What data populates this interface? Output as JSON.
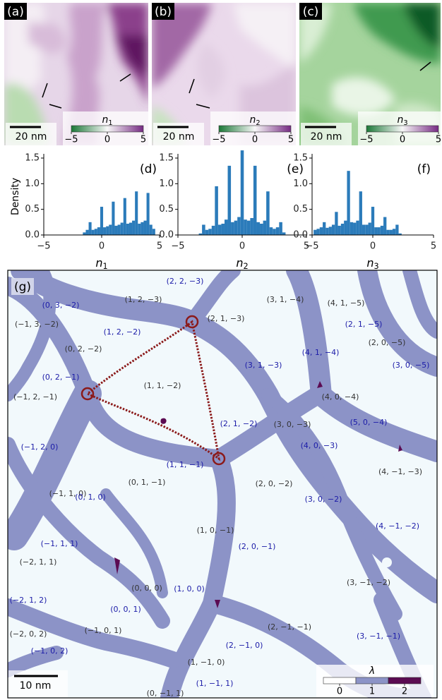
{
  "panels": [
    {
      "letter": "(a)",
      "scale_bar": "20 nm",
      "colorbar": {
        "symbol": "n",
        "sub": "1",
        "colors": [
          "#1b7837",
          "#f7f7f7",
          "#762a83"
        ],
        "ticks": [
          {
            "value": -5,
            "label": "−5"
          },
          0,
          5
        ]
      }
    },
    {
      "letter": "(b)",
      "scale_bar": "20 nm",
      "colorbar": {
        "symbol": "n",
        "sub": "2",
        "colors": [
          "#1b7837",
          "#f7f7f7",
          "#762a83"
        ],
        "ticks": [
          {
            "value": -5,
            "label": "−5"
          },
          0,
          5
        ]
      }
    },
    {
      "letter": "(c)",
      "scale_bar": "20 nm",
      "colorbar": {
        "symbol": "n",
        "sub": "3",
        "colors": [
          "#1b7837",
          "#f7f7f7",
          "#762a83"
        ],
        "ticks": [
          {
            "value": -5,
            "label": "−5"
          },
          0,
          5
        ]
      }
    }
  ],
  "chart_data": [
    {
      "type": "histogram",
      "letter": "(d)",
      "ylabel": "Density",
      "xlabel": {
        "symbol": "n",
        "sub": "1"
      },
      "color": "#2b7bba",
      "bins": [
        -4.875,
        -4.625,
        -4.375,
        -4.125,
        -3.875,
        -3.625,
        -3.375,
        -3.125,
        -2.875,
        -2.625,
        -2.375,
        -2.125,
        -1.875,
        -1.625,
        -1.375,
        -1.125,
        -0.875,
        -0.625,
        -0.375,
        -0.125,
        0.125,
        0.375,
        0.625,
        0.875,
        1.125,
        1.375,
        1.625,
        1.875,
        2.125,
        2.375,
        2.625,
        2.875,
        3.125,
        3.375,
        3.625,
        3.875,
        4.125,
        4.375,
        4.625,
        4.875
      ],
      "counts": [
        0,
        0,
        0,
        0,
        0,
        0,
        0,
        0,
        0,
        0,
        0,
        0,
        0,
        0.05,
        0.1,
        0.25,
        0.1,
        0.12,
        0.15,
        0.55,
        0.15,
        0.17,
        0.2,
        0.65,
        0.18,
        0.2,
        0.24,
        0.72,
        0.22,
        0.24,
        0.28,
        0.85,
        0.22,
        0.25,
        0.28,
        0.82,
        0.2,
        0.12,
        0
      ],
      "xlim": [
        -5,
        5
      ],
      "ylim": [
        0,
        1.5
      ],
      "xticks": [
        {
          "value": -5,
          "label": "−5"
        },
        0,
        5
      ],
      "yticks": [
        {
          "value": 0,
          "label": "0.0"
        },
        {
          "value": 0.5,
          "label": "0.5"
        },
        {
          "value": 1,
          "label": "1.0"
        },
        {
          "value": 1.5,
          "label": "1.5"
        }
      ]
    },
    {
      "type": "histogram",
      "letter": "(e)",
      "xlabel": {
        "symbol": "n",
        "sub": "2"
      },
      "color": "#2b7bba",
      "bins": [
        -4.875,
        -4.625,
        -4.375,
        -4.125,
        -3.875,
        -3.625,
        -3.375,
        -3.125,
        -2.875,
        -2.625,
        -2.375,
        -2.125,
        -1.875,
        -1.625,
        -1.375,
        -1.125,
        -0.875,
        -0.625,
        -0.375,
        -0.125,
        0.125,
        0.375,
        0.625,
        0.875,
        1.125,
        1.375,
        1.625,
        1.875,
        2.125,
        2.375,
        2.625,
        2.875,
        3.125,
        3.375,
        3.625,
        3.875,
        4.125,
        4.375,
        4.625,
        4.875
      ],
      "counts": [
        0,
        0,
        0,
        0,
        0,
        0,
        0.03,
        0.2,
        0.1,
        0.12,
        0.18,
        0.95,
        0.2,
        0.22,
        0.3,
        1.35,
        0.25,
        0.28,
        0.35,
        1.65,
        0.3,
        0.28,
        0.33,
        1.35,
        0.25,
        0.22,
        0.28,
        0.85,
        0.15,
        0.12,
        0.15,
        0.25,
        0.05,
        0,
        0,
        0,
        0,
        0,
        0
      ],
      "xlim": [
        -5,
        5
      ],
      "ylim": [
        0,
        1.5
      ],
      "xticks": [
        {
          "value": -5,
          "label": "−5"
        },
        0,
        5
      ],
      "yticks": [
        {
          "value": 0,
          "label": "0.0"
        },
        {
          "value": 0.5,
          "label": "0.5"
        },
        {
          "value": 1,
          "label": "1.0"
        },
        {
          "value": 1.5,
          "label": "1.5"
        }
      ]
    },
    {
      "type": "histogram",
      "letter": "(f)",
      "xlabel": {
        "symbol": "n",
        "sub": "3"
      },
      "color": "#2b7bba",
      "bins": [
        -4.875,
        -4.625,
        -4.375,
        -4.125,
        -3.875,
        -3.625,
        -3.375,
        -3.125,
        -2.875,
        -2.625,
        -2.375,
        -2.125,
        -1.875,
        -1.625,
        -1.375,
        -1.125,
        -0.875,
        -0.625,
        -0.375,
        -0.125,
        0.125,
        0.375,
        0.625,
        0.875,
        1.125,
        1.375,
        1.625,
        1.875,
        2.125,
        2.375,
        2.625,
        2.875,
        3.125,
        3.375,
        3.625,
        3.875,
        4.125,
        4.375,
        4.625,
        4.875
      ],
      "counts": [
        0.1,
        0.12,
        0.15,
        0.25,
        0.14,
        0.16,
        0.2,
        0.45,
        0.18,
        0.22,
        0.28,
        1.25,
        0.25,
        0.24,
        0.28,
        0.85,
        0.2,
        0.2,
        0.24,
        0.55,
        0.15,
        0.15,
        0.18,
        0.35,
        0.1,
        0.1,
        0.12,
        0.2,
        0.03,
        0,
        0,
        0,
        0,
        0,
        0,
        0,
        0,
        0,
        0
      ],
      "xlim": [
        -5,
        5
      ],
      "ylim": [
        0,
        1.5
      ],
      "xticks": [
        {
          "value": -5,
          "label": "−5"
        },
        0,
        5
      ],
      "yticks": [
        {
          "value": 0,
          "label": "0.0"
        },
        {
          "value": 0.5,
          "label": "0.5"
        },
        {
          "value": 1,
          "label": "1.0"
        },
        {
          "value": 1.5,
          "label": "1.5"
        }
      ]
    }
  ],
  "map": {
    "letter": "(g)",
    "scale_bar": "10 nm",
    "colorbar": {
      "symbol": "λ",
      "ticks": [
        0,
        1,
        2
      ],
      "colors": [
        "#ffffff",
        "#8c93c7",
        "#5b0b52"
      ]
    },
    "labels": [
      {
        "text": "(2, 2, −3)",
        "color": "#1c1ca8"
      },
      {
        "text": "(0, 3, −2)",
        "color": "#1c1ca8"
      },
      {
        "text": "(1, 2, −3)",
        "color": "#333333"
      },
      {
        "text": "(3, 1, −4)",
        "color": "#333333"
      },
      {
        "text": "(4, 1, −5)",
        "color": "#333333"
      },
      {
        "text": "(−1, 3, −2)",
        "color": "#333333"
      },
      {
        "text": "(2, 1, −3)",
        "color": "#333333"
      },
      {
        "text": "(1, 2, −2)",
        "color": "#1c1ca8"
      },
      {
        "text": "(2, 1, −5)",
        "color": "#1c1ca8"
      },
      {
        "text": "(0, 2, −2)",
        "color": "#333333"
      },
      {
        "text": "(2, 0, −5)",
        "color": "#333333"
      },
      {
        "text": "(4, 1, −4)",
        "color": "#1c1ca8"
      },
      {
        "text": "(0, 2, −1)",
        "color": "#1c1ca8"
      },
      {
        "text": "(3, 1, −3)",
        "color": "#1c1ca8"
      },
      {
        "text": "(3, 0, −5)",
        "color": "#1c1ca8"
      },
      {
        "text": "(1, 1, −2)",
        "color": "#333333"
      },
      {
        "text": "(−1, 2, −1)",
        "color": "#333333"
      },
      {
        "text": "(4, 0, −4)",
        "color": "#333333"
      },
      {
        "text": "(2, 1, −2)",
        "color": "#1c1ca8"
      },
      {
        "text": "(5, 0, −4)",
        "color": "#1c1ca8"
      },
      {
        "text": "(−1, 2, 0)",
        "color": "#1c1ca8"
      },
      {
        "text": "(3, 0, −3)",
        "color": "#333333"
      },
      {
        "text": "(4, 0, −3)",
        "color": "#1c1ca8"
      },
      {
        "text": "(1, 1, −1)",
        "color": "#1c1ca8"
      },
      {
        "text": "(4, −1, −3)",
        "color": "#333333"
      },
      {
        "text": "(0, 1, −1)",
        "color": "#333333"
      },
      {
        "text": "(−1, 1, 0)",
        "color": "#333333"
      },
      {
        "text": "(2, 0, −2)",
        "color": "#333333"
      },
      {
        "text": "(0, 1, 0)",
        "color": "#1c1ca8"
      },
      {
        "text": "(3, 0, −2)",
        "color": "#1c1ca8"
      },
      {
        "text": "(1, 0, −1)",
        "color": "#333333"
      },
      {
        "text": "(4, −1, −2)",
        "color": "#1c1ca8"
      },
      {
        "text": "(−1, 1, 1)",
        "color": "#1c1ca8"
      },
      {
        "text": "(2, 0, −1)",
        "color": "#1c1ca8"
      },
      {
        "text": "(−2, 1, 1)",
        "color": "#333333"
      },
      {
        "text": "(3, −1, −2)",
        "color": "#333333"
      },
      {
        "text": "(0, 0, 0)",
        "color": "#333333"
      },
      {
        "text": "(1, 0, 0)",
        "color": "#1c1ca8"
      },
      {
        "text": "(−2, 1, 2)",
        "color": "#1c1ca8"
      },
      {
        "text": "(0, 0, 1)",
        "color": "#1c1ca8"
      },
      {
        "text": "(2, −1, −1)",
        "color": "#333333"
      },
      {
        "text": "(−1, 0, 1)",
        "color": "#333333"
      },
      {
        "text": "(−2, 0, 2)",
        "color": "#333333"
      },
      {
        "text": "(2, −1, 0)",
        "color": "#1c1ca8"
      },
      {
        "text": "(3, −1, −1)",
        "color": "#1c1ca8"
      },
      {
        "text": "(−1, 0, 2)",
        "color": "#1c1ca8"
      },
      {
        "text": "(1, −1, 0)",
        "color": "#333333"
      },
      {
        "text": "(1, −1, 1)",
        "color": "#1c1ca8"
      },
      {
        "text": "(0, −1, 1)",
        "color": "#333333"
      }
    ]
  }
}
